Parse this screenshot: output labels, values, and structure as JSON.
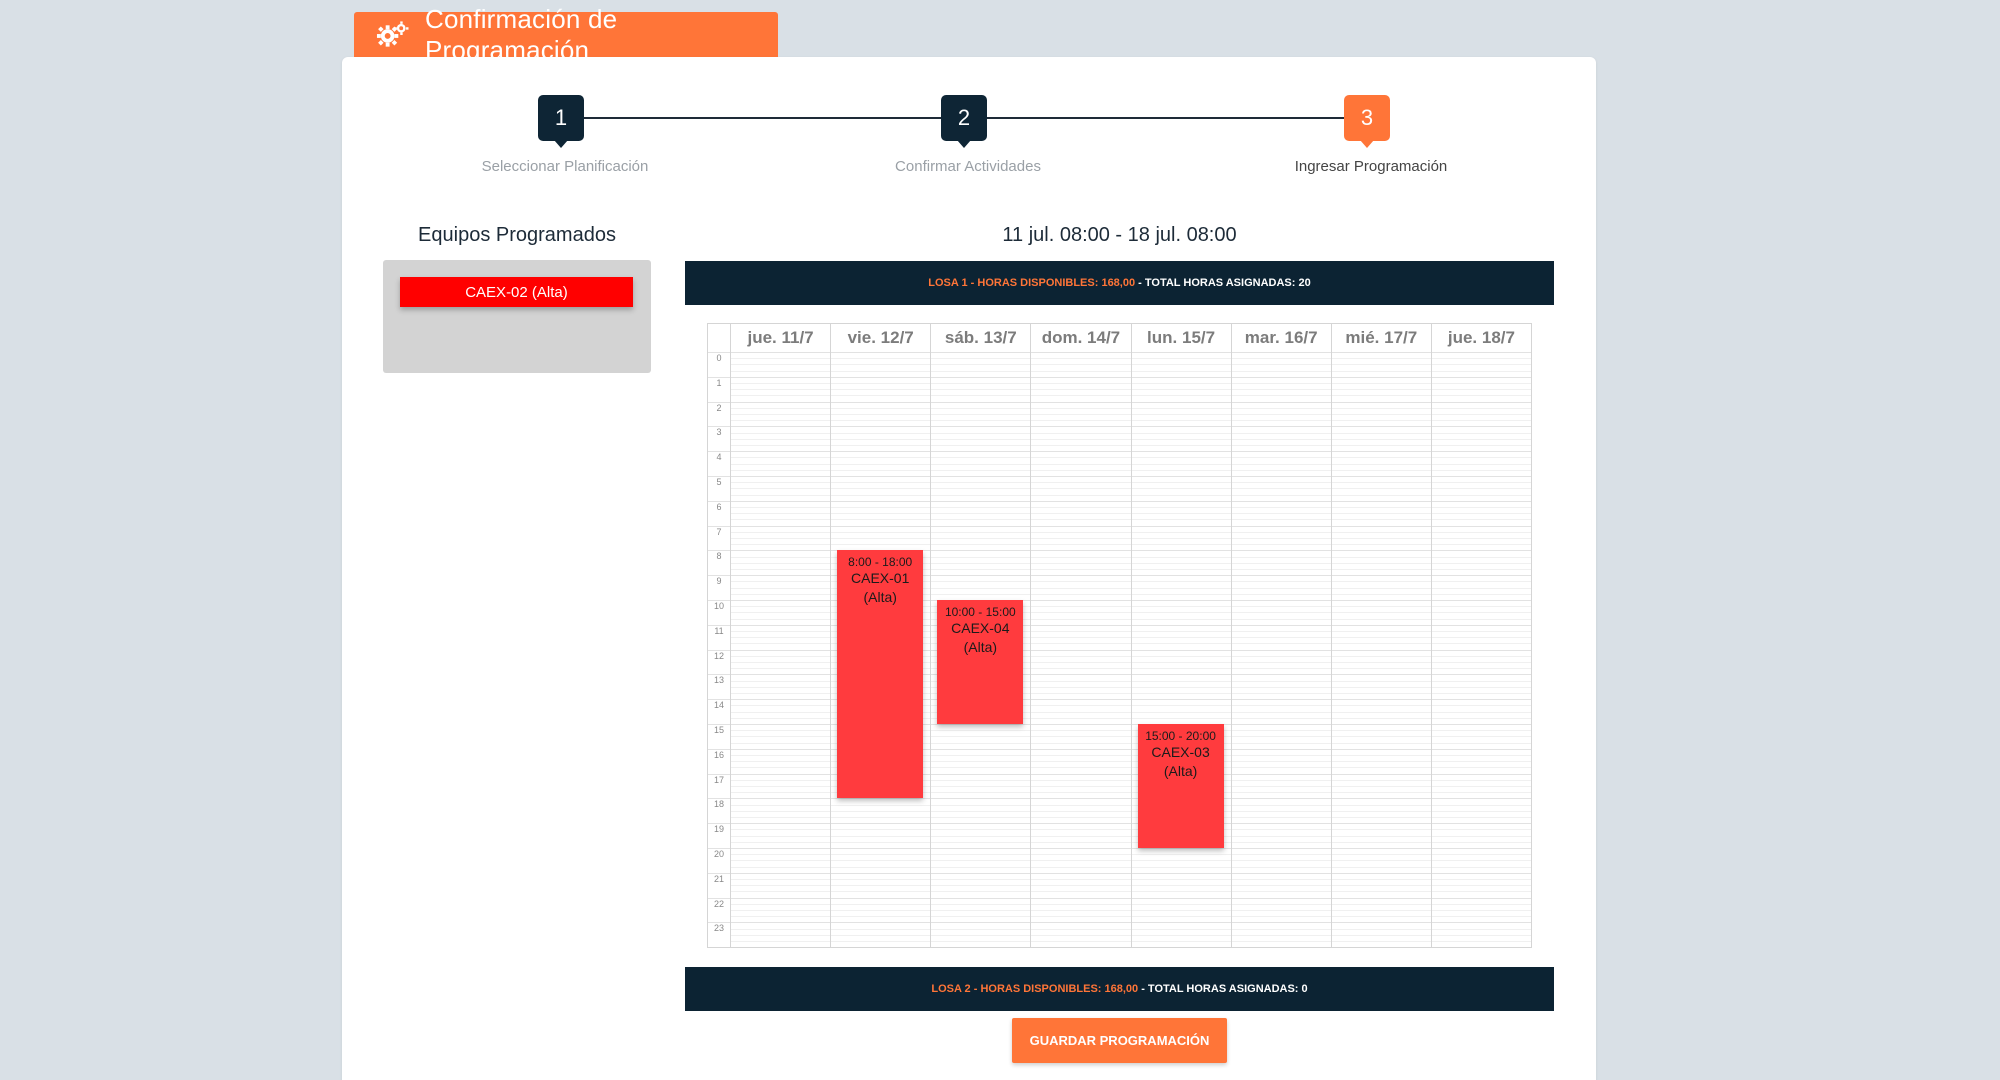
{
  "header": {
    "title": "Confirmación de Programación",
    "icon": "gears-icon"
  },
  "stepper": {
    "steps": [
      {
        "number": "1",
        "label": "Seleccionar Planificación",
        "state": "done"
      },
      {
        "number": "2",
        "label": "Confirmar Actividades",
        "state": "done"
      },
      {
        "number": "3",
        "label": "Ingresar Programación",
        "state": "active"
      }
    ]
  },
  "equipos": {
    "title": "Equipos Programados",
    "items": [
      {
        "label": "CAEX-02 (Alta)",
        "color": "#ff0000"
      }
    ]
  },
  "schedule": {
    "date_range": "11 jul. 08:00 - 18 jul. 08:00",
    "losa1": {
      "part1": "LOSA 1 - HORAS DISPONIBLES: 168,00",
      "part2": " - TOTAL HORAS ASIGNADAS: 20"
    },
    "losa2": {
      "part1": "LOSA 2 - HORAS DISPONIBLES: 168,00",
      "part2": " - TOTAL HORAS ASIGNADAS: 0"
    },
    "days": [
      "jue. 11/7",
      "vie. 12/7",
      "sáb. 13/7",
      "dom. 14/7",
      "lun. 15/7",
      "mar. 16/7",
      "mié. 17/7",
      "jue. 18/7"
    ],
    "hours": [
      "0",
      "1",
      "2",
      "3",
      "4",
      "5",
      "6",
      "7",
      "8",
      "9",
      "10",
      "11",
      "12",
      "13",
      "14",
      "15",
      "16",
      "17",
      "18",
      "19",
      "20",
      "21",
      "22",
      "23"
    ],
    "events": [
      {
        "day_index": 1,
        "start": 8,
        "end": 18,
        "time": "8:00 - 18:00",
        "name": "CAEX-01",
        "priority": "(Alta)"
      },
      {
        "day_index": 2,
        "start": 10,
        "end": 15,
        "time": "10:00 - 15:00",
        "name": "CAEX-04",
        "priority": "(Alta)"
      },
      {
        "day_index": 4,
        "start": 15,
        "end": 20,
        "time": "15:00 - 20:00",
        "name": "CAEX-03",
        "priority": "(Alta)"
      }
    ],
    "event_color": "#ff3b3e"
  },
  "actions": {
    "save_label": "GUARDAR PROGRAMACIÓN"
  },
  "colors": {
    "accent": "#ff7538",
    "dark": "#0e2535"
  }
}
